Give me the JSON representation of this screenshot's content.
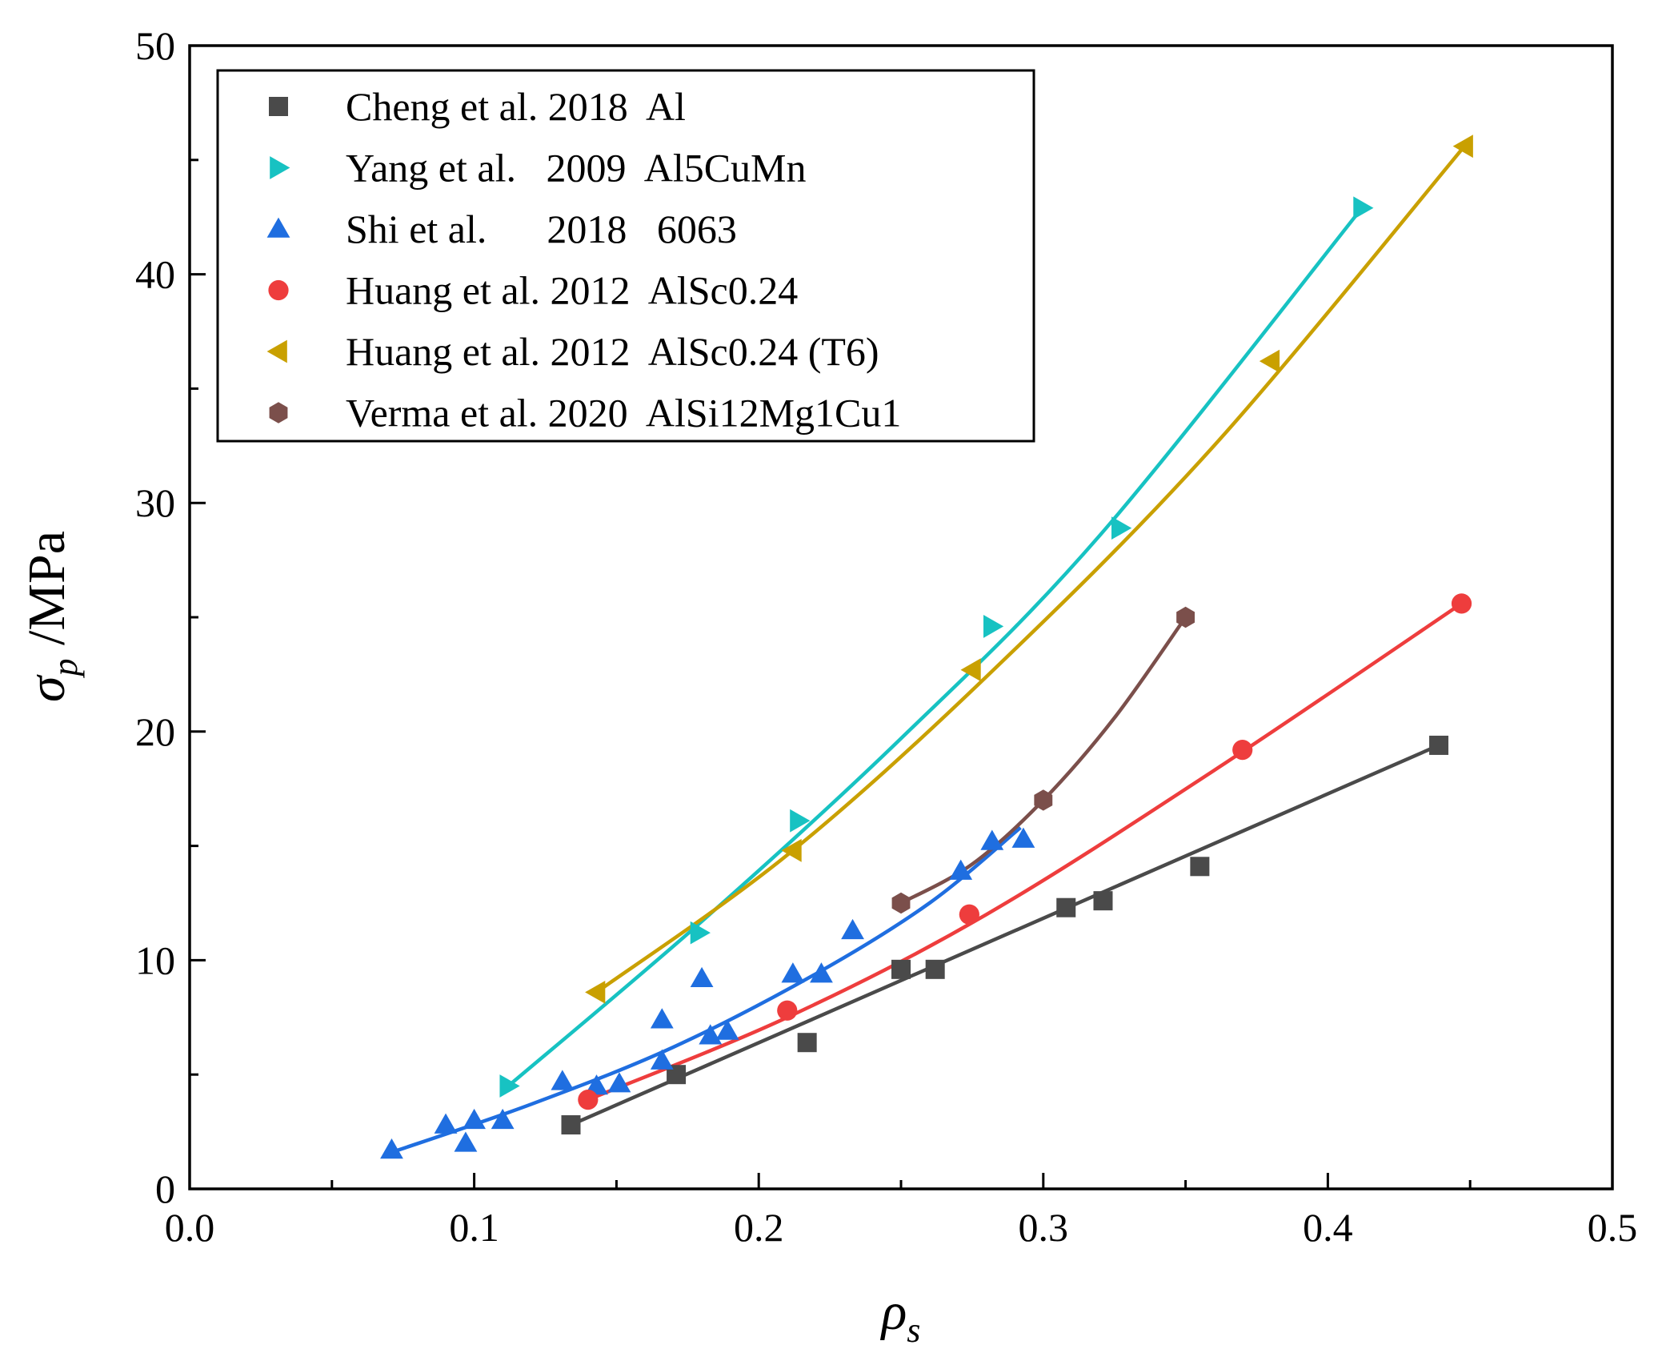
{
  "chart_data": {
    "type": "scatter",
    "title": "",
    "xlabel": {
      "symbol": "ρ",
      "sub": "s"
    },
    "ylabel": {
      "symbol": "σ",
      "sub": "p",
      "suffix": " /MPa"
    },
    "xlim": [
      0,
      0.5
    ],
    "ylim": [
      0,
      50
    ],
    "x_ticks": [
      0.0,
      0.1,
      0.2,
      0.3,
      0.4,
      0.5
    ],
    "x_tick_labels": [
      "0.0",
      "0.1",
      "0.2",
      "0.3",
      "0.4",
      "0.5"
    ],
    "y_ticks": [
      0,
      10,
      20,
      30,
      40,
      50
    ],
    "y_tick_labels": [
      "0",
      "10",
      "20",
      "30",
      "40",
      "50"
    ],
    "grid": false,
    "legend_position": "top-left",
    "series": [
      {
        "name": "Cheng et al. 2018  Al",
        "marker": "square",
        "color": "#4a4a4a",
        "x": [
          0.134,
          0.171,
          0.217,
          0.25,
          0.262,
          0.308,
          0.321,
          0.355,
          0.439
        ],
        "y": [
          2.8,
          5.0,
          6.4,
          9.6,
          9.6,
          12.3,
          12.6,
          14.1,
          19.4
        ],
        "fit_x": [
          0.134,
          0.439
        ],
        "fit_y": [
          2.8,
          19.4
        ]
      },
      {
        "name": "Yang et al.   2009  Al5CuMn",
        "marker": "triangle-right",
        "color": "#17c2c2",
        "x": [
          0.112,
          0.179,
          0.214,
          0.282,
          0.327,
          0.412
        ],
        "y": [
          4.5,
          11.2,
          16.1,
          24.6,
          28.9,
          42.9
        ],
        "fit_x": [
          0.112,
          0.18,
          0.25,
          0.32,
          0.412
        ],
        "fit_y": [
          4.5,
          11.7,
          19.7,
          28.6,
          42.9
        ]
      },
      {
        "name": "Shi et al.      2018   6063",
        "marker": "triangle-up",
        "color": "#1f6ee0",
        "x": [
          0.071,
          0.09,
          0.097,
          0.1,
          0.11,
          0.131,
          0.143,
          0.151,
          0.166,
          0.166,
          0.18,
          0.183,
          0.189,
          0.212,
          0.222,
          0.233,
          0.271,
          0.282,
          0.293
        ],
        "y": [
          1.7,
          2.8,
          2.0,
          3.0,
          3.0,
          4.7,
          4.5,
          4.6,
          7.4,
          5.6,
          9.2,
          6.7,
          6.9,
          9.4,
          9.4,
          11.3,
          13.9,
          15.2,
          15.3
        ],
        "fit_x": [
          0.071,
          0.12,
          0.17,
          0.22,
          0.26,
          0.292
        ],
        "fit_y": [
          1.6,
          3.7,
          6.2,
          9.4,
          12.5,
          15.8
        ]
      },
      {
        "name": "Huang et al. 2012  AlSc0.24",
        "marker": "circle",
        "color": "#ee3d3d",
        "x": [
          0.14,
          0.21,
          0.274,
          0.37,
          0.447
        ],
        "y": [
          3.9,
          7.8,
          12.0,
          19.2,
          25.6
        ],
        "fit_x": [
          0.14,
          0.21,
          0.28,
          0.36,
          0.447
        ],
        "fit_y": [
          3.9,
          7.5,
          12.0,
          18.3,
          25.6
        ]
      },
      {
        "name": "Huang et al. 2012  AlSc0.24 (T6)",
        "marker": "triangle-left",
        "color": "#c9a000",
        "x": [
          0.143,
          0.212,
          0.275,
          0.38,
          0.448
        ],
        "y": [
          8.6,
          14.8,
          22.7,
          36.2,
          45.6
        ],
        "fit_x": [
          0.143,
          0.21,
          0.28,
          0.36,
          0.448
        ],
        "fit_y": [
          8.6,
          14.6,
          22.4,
          32.5,
          45.6
        ]
      },
      {
        "name": "Verma et al. 2020  AlSi12Mg1Cu1",
        "marker": "hexagon",
        "color": "#7b4f4b",
        "x": [
          0.25,
          0.3,
          0.35
        ],
        "y": [
          12.5,
          17.0,
          25.0
        ],
        "fit_x": [
          0.25,
          0.275,
          0.3,
          0.325,
          0.35
        ],
        "fit_y": [
          12.5,
          14.2,
          17.0,
          20.6,
          25.0
        ]
      }
    ]
  }
}
